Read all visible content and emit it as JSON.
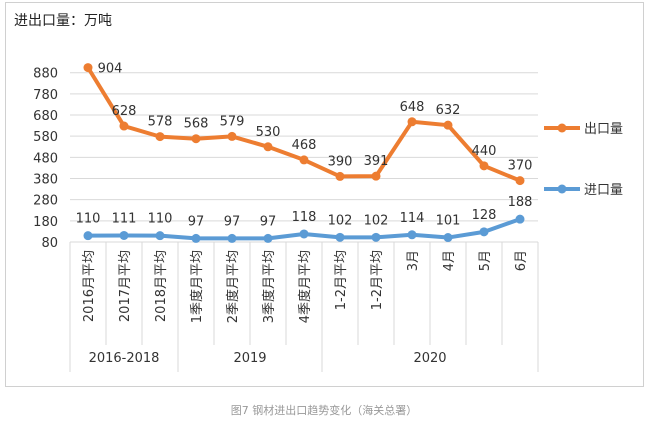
{
  "unit_title": "进出口量：万吨",
  "caption": "图7 钢材进出口趋势变化（海关总署）",
  "colors": {
    "export": "#ED7D31",
    "import": "#5B9BD5"
  },
  "chart_data": {
    "type": "line",
    "title": "",
    "xlabel": "",
    "ylabel": "进出口量：万吨",
    "ylim": [
      80,
      940
    ],
    "yticks": [
      80,
      180,
      280,
      380,
      480,
      580,
      680,
      780,
      880
    ],
    "grid": true,
    "legend_position": "right",
    "categories": [
      "2016月平均",
      "2017月平均",
      "2018月平均",
      "1季度月平均",
      "2季度月平均",
      "3季度月平均",
      "4季度月平均",
      "1-2月平均",
      "1-2月平均",
      "3月",
      "4月",
      "5月",
      "6月"
    ],
    "groups": [
      {
        "label": "2016-2018",
        "start": 0,
        "end": 2
      },
      {
        "label": "2019",
        "start": 3,
        "end": 6
      },
      {
        "label": "2020",
        "start": 7,
        "end": 12
      }
    ],
    "series": [
      {
        "name": "出口量",
        "color": "#ED7D31",
        "values": [
          904,
          628,
          578,
          568,
          579,
          530,
          468,
          390,
          391,
          648,
          632,
          440,
          370
        ]
      },
      {
        "name": "进口量",
        "color": "#5B9BD5",
        "values": [
          110,
          111,
          110,
          97,
          97,
          97,
          118,
          102,
          102,
          114,
          101,
          128,
          188
        ]
      }
    ]
  }
}
